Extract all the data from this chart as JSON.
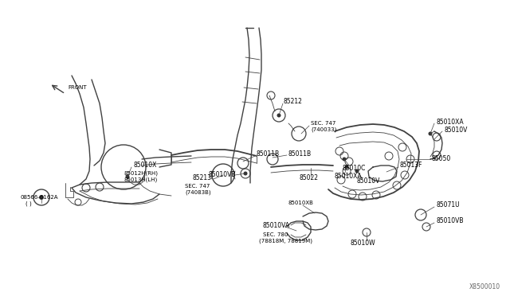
{
  "bg_color": "#ffffff",
  "line_color": "#404040",
  "label_color": "#000000",
  "part_number_bottom_right": "X8500010",
  "figsize": [
    6.4,
    3.72
  ],
  "dpi": 100,
  "xlim": [
    0,
    640
  ],
  "ylim": [
    0,
    372
  ]
}
